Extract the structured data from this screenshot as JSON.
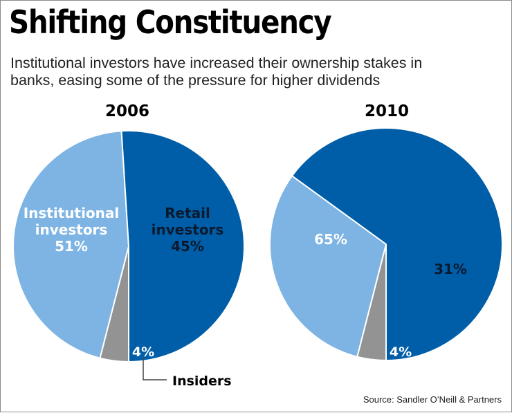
{
  "title": "Shifting Constituency",
  "subtitle": [
    "Institutional investors have increased their ownership stakes in",
    "banks, easing some of the pressure for higher dividends"
  ],
  "source": "Source: Sandler O’Neill & Partners",
  "colors": {
    "institutional": "#005ea8",
    "retail": "#7db4e3",
    "insiders": "#939393",
    "separator": "#ffffff"
  },
  "chart_data": [
    {
      "type": "pie",
      "title": "2006",
      "slices": [
        {
          "label": "Institutional investors",
          "value": 51,
          "value_label": "51%",
          "label_lines": [
            "Institutional",
            "investors"
          ],
          "color": "#005ea8"
        },
        {
          "label": "Retail investors",
          "value": 45,
          "value_label": "45%",
          "label_lines": [
            "Retail",
            "investors"
          ],
          "color": "#7db4e3"
        },
        {
          "label": "Insiders",
          "value": 4,
          "value_label": "4%",
          "label_lines": [],
          "color": "#939393"
        }
      ],
      "callout": {
        "slice": "Insiders",
        "text": "Insiders"
      }
    },
    {
      "type": "pie",
      "title": "2010",
      "slices": [
        {
          "label": "Institutional investors",
          "value": 65,
          "value_label": "65%",
          "label_lines": [],
          "color": "#005ea8"
        },
        {
          "label": "Retail investors",
          "value": 31,
          "value_label": "31%",
          "label_lines": [],
          "color": "#7db4e3"
        },
        {
          "label": "Insiders",
          "value": 4,
          "value_label": "4%",
          "label_lines": [],
          "color": "#939393"
        }
      ]
    }
  ]
}
